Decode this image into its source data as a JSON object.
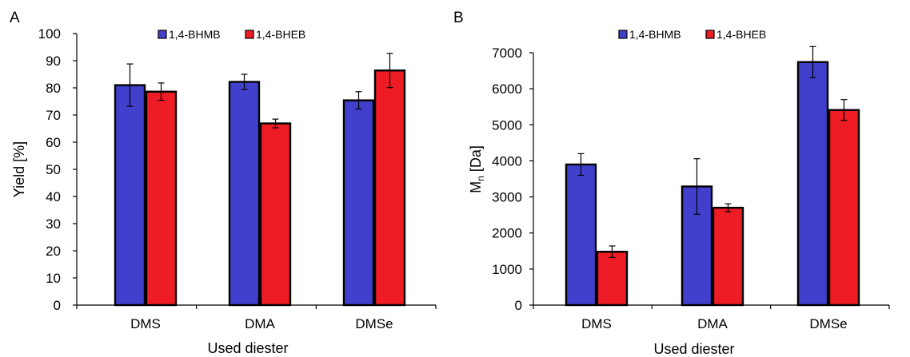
{
  "chart_data": [
    {
      "type": "bar",
      "panel_label": "A",
      "categories": [
        "DMS",
        "DMA",
        "DMSe"
      ],
      "series": [
        {
          "name": "1,4-BHMB",
          "values": [
            81,
            82.2,
            75.4
          ],
          "errors": [
            7.8,
            2.8,
            3.2
          ]
        },
        {
          "name": "1,4-BHEB",
          "values": [
            78.6,
            66.9,
            86.4
          ],
          "errors": [
            3.2,
            1.6,
            6.3
          ]
        }
      ],
      "xlabel": "Used diester",
      "ylabel": "Yield [%]",
      "ylim": [
        0,
        100
      ],
      "yticks": [
        0,
        10,
        20,
        30,
        40,
        50,
        60,
        70,
        80,
        90,
        100
      ],
      "grid": false,
      "legend": "top-center",
      "colors": [
        "#4040cc",
        "#ee1c24"
      ]
    },
    {
      "type": "bar",
      "panel_label": "B",
      "categories": [
        "DMS",
        "DMA",
        "DMSe"
      ],
      "series": [
        {
          "name": "1,4-BHMB",
          "values": [
            3900,
            3290,
            6740
          ],
          "errors": [
            300,
            770,
            430
          ]
        },
        {
          "name": "1,4-BHEB",
          "values": [
            1480,
            2700,
            5410
          ],
          "errors": [
            160,
            110,
            290
          ]
        }
      ],
      "xlabel": "Used diester",
      "ylabel": "M",
      "ylabel_subscript": "n",
      "ylabel_suffix": " [Da]",
      "ylim": [
        0,
        7000
      ],
      "yticks": [
        0,
        1000,
        2000,
        3000,
        4000,
        5000,
        6000,
        7000
      ],
      "grid": false,
      "legend": "top-center",
      "colors": [
        "#4040cc",
        "#ee1c24"
      ]
    }
  ]
}
